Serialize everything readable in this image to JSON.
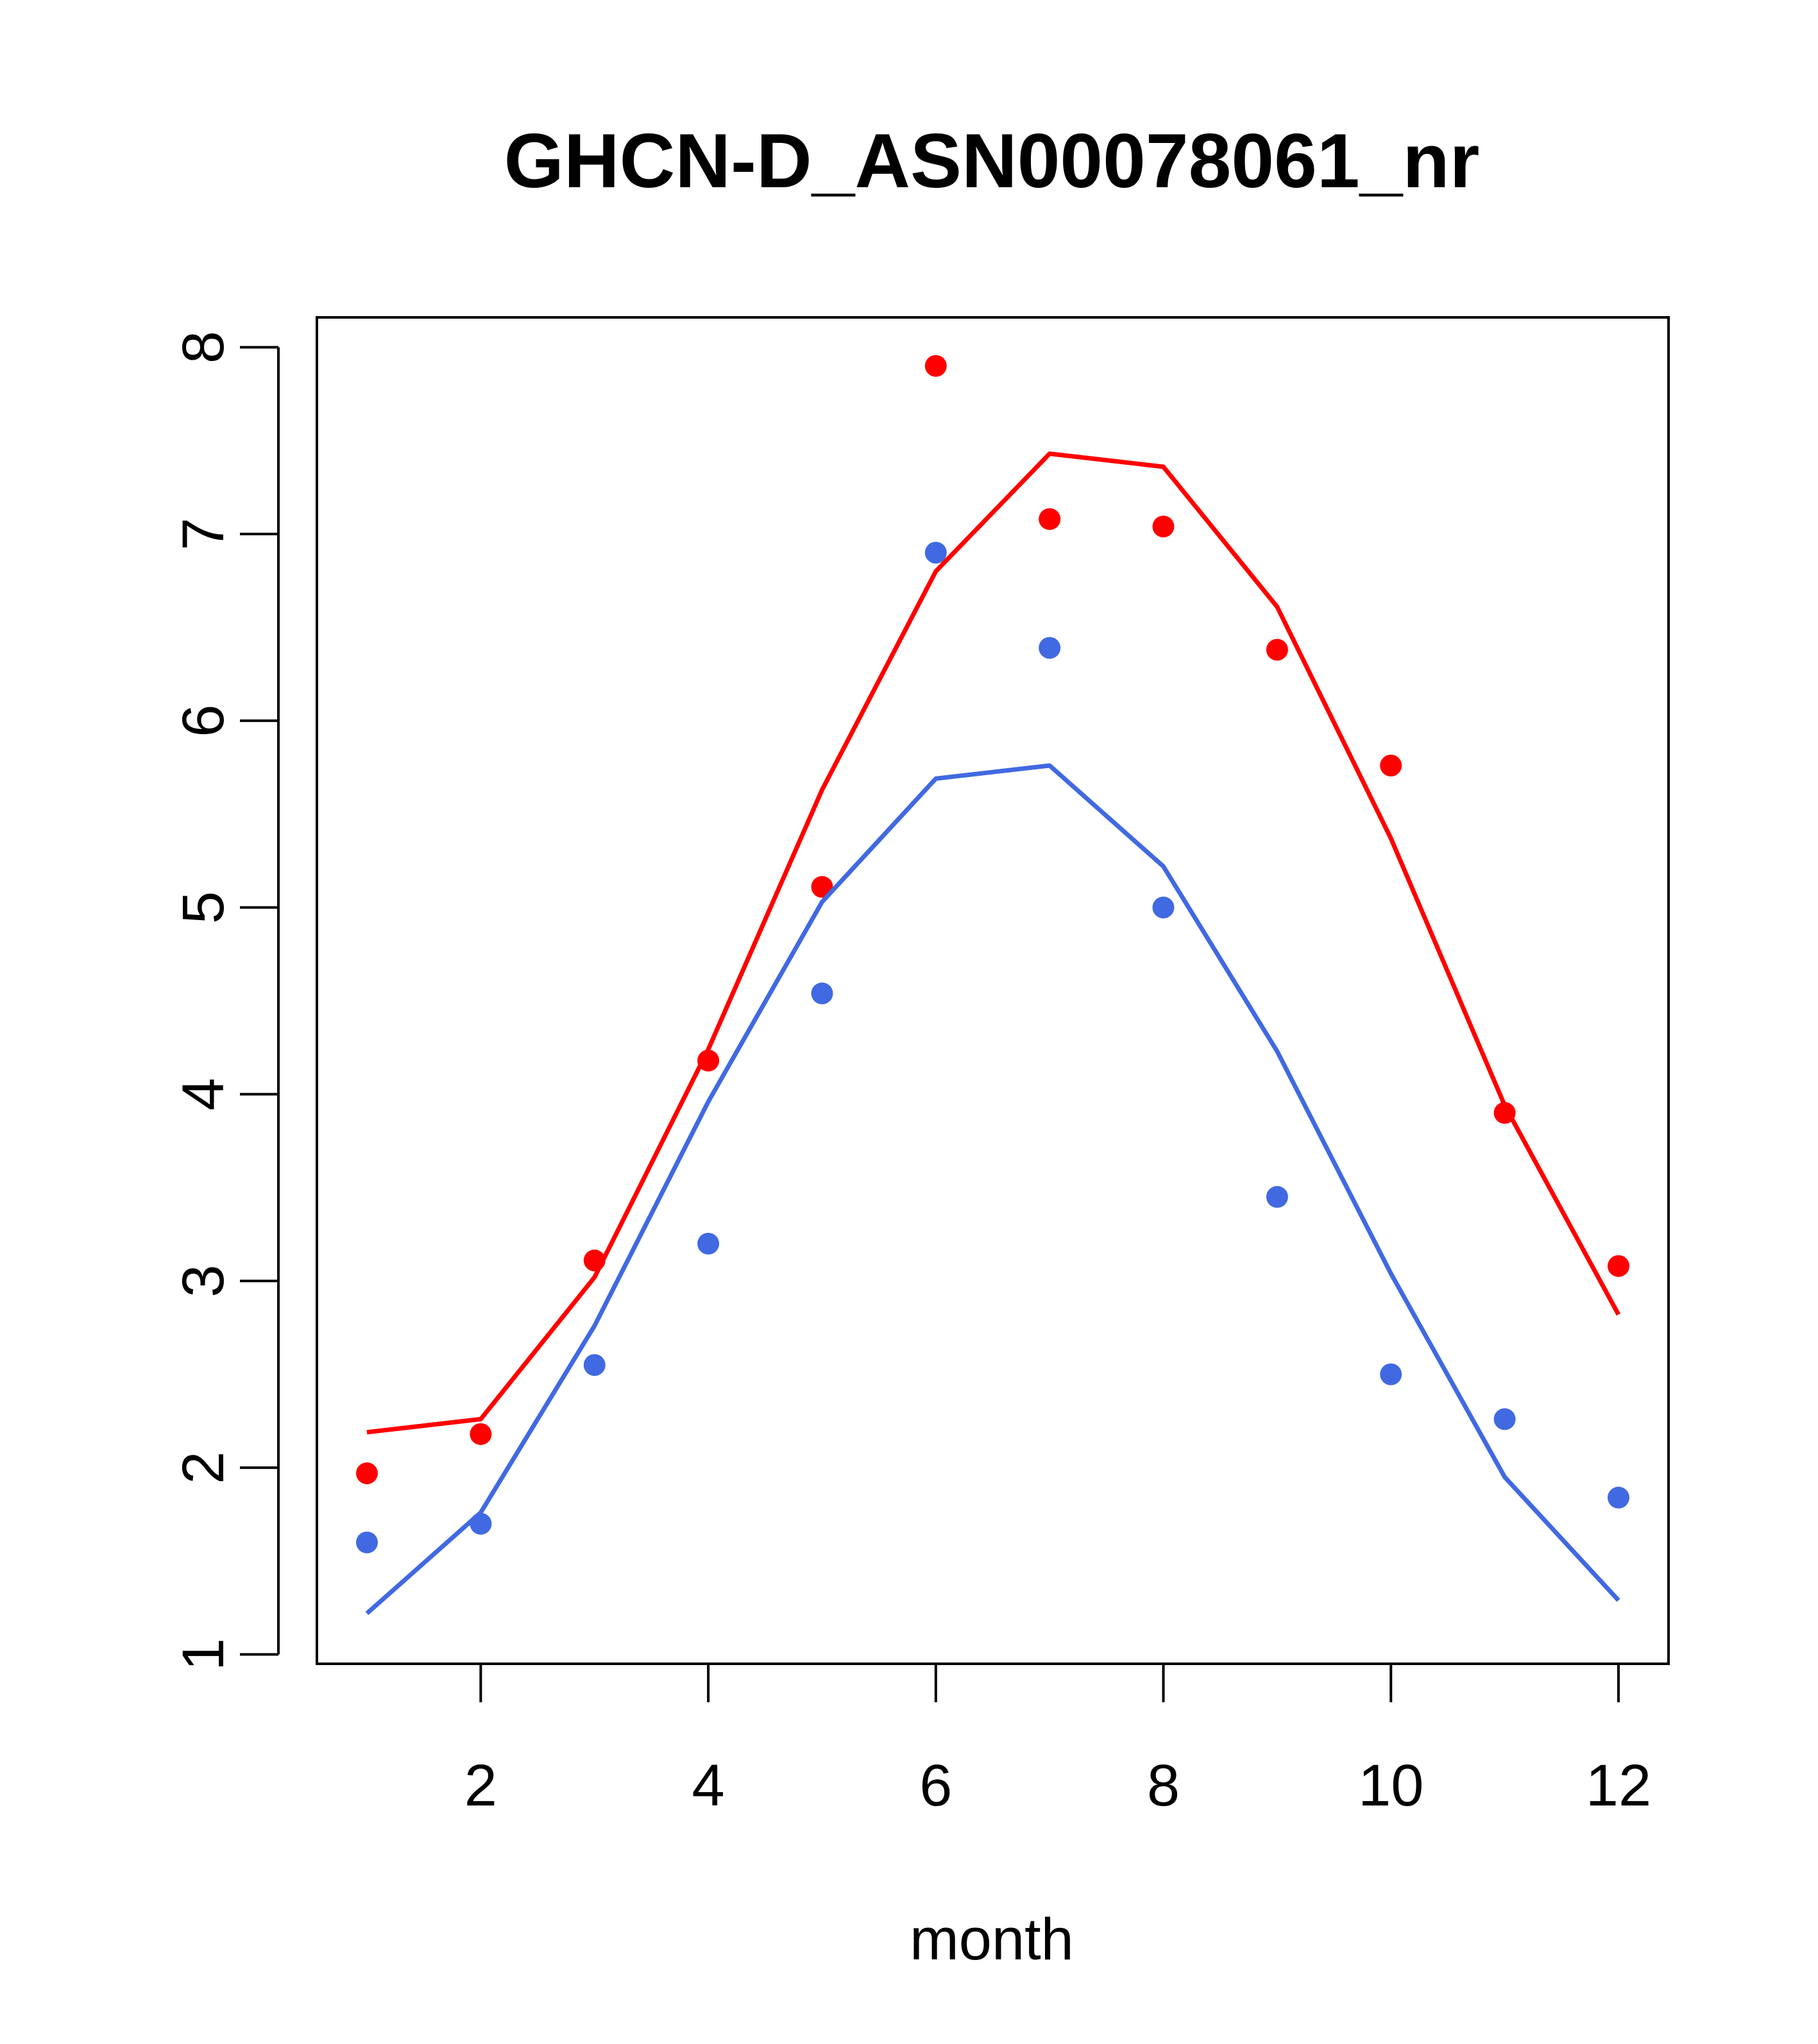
{
  "chart_data": {
    "type": "line",
    "title": "GHCN-D_ASN00078061_nr",
    "xlabel": "month",
    "ylabel": "",
    "xlim": [
      0.56,
      12.44
    ],
    "ylim": [
      0.95,
      8.16
    ],
    "x_ticks": [
      2,
      4,
      6,
      8,
      10,
      12
    ],
    "y_ticks": [
      1,
      2,
      3,
      4,
      5,
      6,
      7,
      8
    ],
    "grid": false,
    "colors": {
      "red": "#FF0000",
      "blue": "#4169E1"
    },
    "series": [
      {
        "color": "#FF0000",
        "kind": "line",
        "x": [
          1,
          2,
          3,
          4,
          5,
          6,
          7,
          8,
          9,
          10,
          11,
          12
        ],
        "y": [
          2.19,
          2.26,
          3.02,
          4.24,
          5.63,
          6.8,
          7.43,
          7.36,
          6.61,
          5.37,
          3.94,
          2.82
        ]
      },
      {
        "color": "#FF0000",
        "kind": "points",
        "x": [
          1,
          2,
          3,
          4,
          5,
          6,
          7,
          8,
          9,
          10,
          11,
          12
        ],
        "y": [
          1.97,
          2.18,
          3.11,
          4.18,
          5.11,
          7.9,
          7.08,
          7.04,
          6.38,
          5.76,
          3.9,
          3.08
        ]
      },
      {
        "color": "#4169E1",
        "kind": "line",
        "x": [
          1,
          2,
          3,
          4,
          5,
          6,
          7,
          8,
          9,
          10,
          11,
          12
        ],
        "y": [
          1.22,
          1.76,
          2.76,
          3.96,
          5.03,
          5.69,
          5.76,
          5.22,
          4.23,
          3.04,
          1.95,
          1.29
        ]
      },
      {
        "color": "#4169E1",
        "kind": "points",
        "x": [
          1,
          2,
          3,
          4,
          5,
          6,
          7,
          8,
          9,
          10,
          11,
          12
        ],
        "y": [
          1.6,
          1.7,
          2.55,
          3.2,
          4.54,
          6.9,
          6.39,
          5.0,
          3.45,
          2.5,
          2.26,
          1.84
        ]
      }
    ]
  }
}
